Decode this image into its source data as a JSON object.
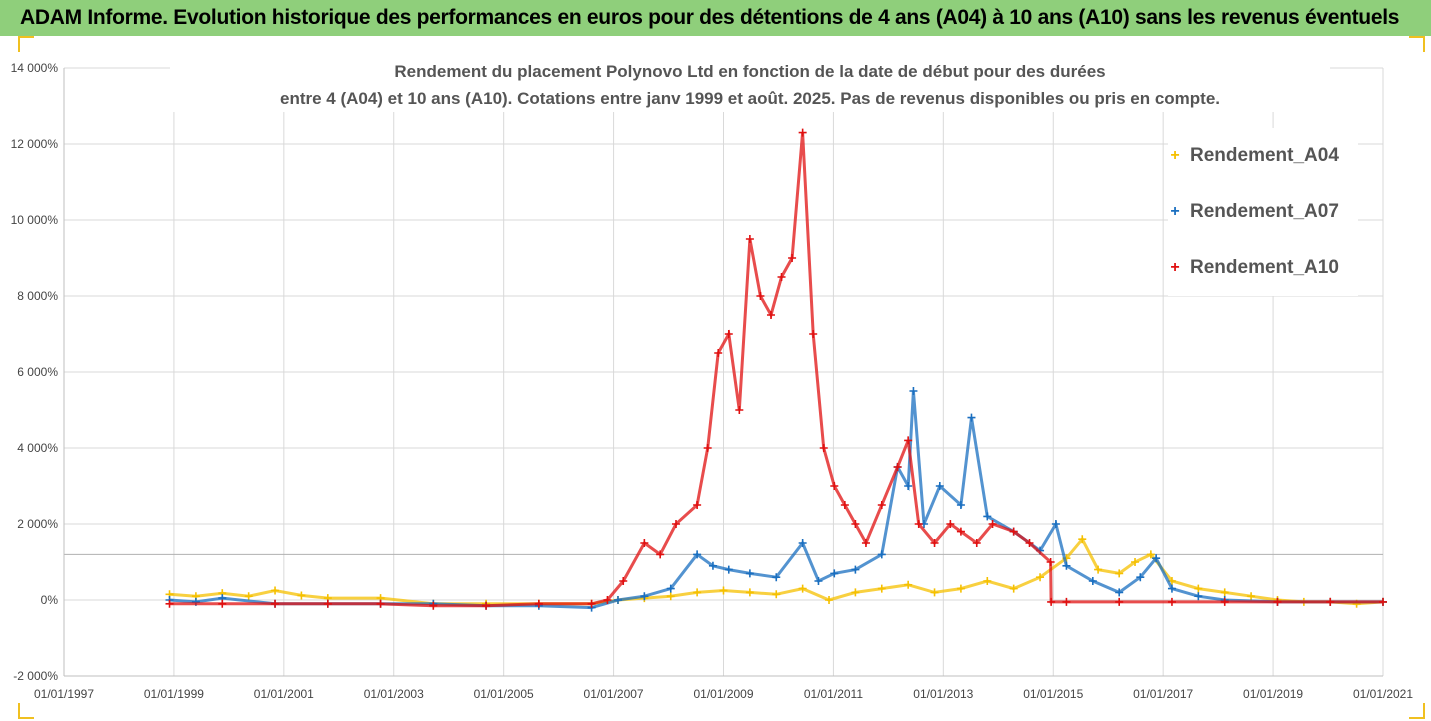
{
  "header": {
    "title": "ADAM Informe. Evolution historique des performances en euros pour des détentions de 4 ans (A04) à 10 ans (A10) sans les revenus éventuels"
  },
  "chart_data": {
    "type": "scatter",
    "title_line1": "Rendement du placement Polynovo Ltd en fonction de la date de début pour des durées",
    "title_line2": "entre 4 (A04) et 10 ans (A10). Cotations entre janv 1999 et août. 2025. Pas de revenus disponibles ou pris en compte.",
    "xlabel": "",
    "ylabel": "",
    "x_ticks": [
      "01/01/1997",
      "01/01/1999",
      "01/01/2001",
      "01/01/2003",
      "01/01/2005",
      "01/01/2007",
      "01/01/2009",
      "01/01/2011",
      "01/01/2013",
      "01/01/2015",
      "01/01/2017",
      "01/01/2019",
      "01/01/2021"
    ],
    "xlim": [
      1997.0,
      2022.0
    ],
    "y_ticks": [
      "-2 000%",
      "0%",
      "2 000%",
      "4 000%",
      "6 000%",
      "8 000%",
      "10 000%",
      "12 000%",
      "14 000%"
    ],
    "ylim": [
      -2000,
      14000
    ],
    "grid": true,
    "legend_position": "right",
    "reference_line_y": 1200,
    "marker": "+",
    "series": [
      {
        "name": "Rendement_A04",
        "color": "#f5c000",
        "x": [
          1999.0,
          1999.5,
          2000.0,
          2000.5,
          2001.0,
          2001.5,
          2002.0,
          2003.0,
          2004.0,
          2005.0,
          2006.0,
          2007.0,
          2007.5,
          2008.0,
          2008.5,
          2009.0,
          2009.5,
          2010.0,
          2010.5,
          2011.0,
          2011.5,
          2012.0,
          2012.5,
          2013.0,
          2013.5,
          2014.0,
          2014.5,
          2015.0,
          2015.5,
          2016.0,
          2016.3,
          2016.6,
          2017.0,
          2017.3,
          2017.6,
          2018.0,
          2018.5,
          2019.0,
          2019.5,
          2020.0,
          2020.5,
          2021.0,
          2021.5,
          2022.0
        ],
        "y": [
          150,
          100,
          180,
          100,
          250,
          120,
          50,
          50,
          -100,
          -100,
          -100,
          -100,
          0,
          50,
          100,
          200,
          250,
          200,
          150,
          300,
          0,
          200,
          300,
          400,
          200,
          300,
          500,
          300,
          600,
          1100,
          1600,
          800,
          700,
          1000,
          1200,
          500,
          300,
          200,
          100,
          0,
          -50,
          -50,
          -100,
          -50
        ]
      },
      {
        "name": "Rendement_A07",
        "color": "#1a6fc0",
        "x": [
          1999.0,
          1999.5,
          2000.0,
          2001.0,
          2002.0,
          2003.0,
          2004.0,
          2005.0,
          2006.0,
          2007.0,
          2007.5,
          2008.0,
          2008.5,
          2009.0,
          2009.3,
          2009.6,
          2010.0,
          2010.5,
          2011.0,
          2011.3,
          2011.6,
          2012.0,
          2012.5,
          2012.8,
          2013.0,
          2013.1,
          2013.3,
          2013.6,
          2014.0,
          2014.2,
          2014.5,
          2015.0,
          2015.5,
          2015.8,
          2016.0,
          2016.5,
          2017.0,
          2017.4,
          2017.7,
          2018.0,
          2018.5,
          2019.0,
          2020.0,
          2021.0,
          2022.0
        ],
        "y": [
          0,
          -50,
          50,
          -100,
          -100,
          -100,
          -100,
          -150,
          -150,
          -200,
          0,
          100,
          300,
          1200,
          900,
          800,
          700,
          600,
          1500,
          500,
          700,
          800,
          1200,
          3500,
          3000,
          5500,
          2000,
          3000,
          2500,
          4800,
          2200,
          1800,
          1300,
          2000,
          900,
          500,
          200,
          600,
          1100,
          300,
          100,
          0,
          -50,
          -50,
          -50
        ]
      },
      {
        "name": "Rendement_A10",
        "color": "#e01010",
        "x": [
          1999.0,
          2000.0,
          2001.0,
          2002.0,
          2003.0,
          2004.0,
          2005.0,
          2006.0,
          2007.0,
          2007.3,
          2007.6,
          2008.0,
          2008.3,
          2008.6,
          2009.0,
          2009.2,
          2009.4,
          2009.6,
          2009.8,
          2010.0,
          2010.2,
          2010.4,
          2010.6,
          2010.8,
          2011.0,
          2011.2,
          2011.4,
          2011.6,
          2011.8,
          2012.0,
          2012.2,
          2012.5,
          2012.8,
          2013.0,
          2013.2,
          2013.5,
          2013.8,
          2014.0,
          2014.3,
          2014.6,
          2015.0,
          2015.3,
          2015.7,
          2015.71,
          2016.0,
          2017.0,
          2018.0,
          2019.0,
          2020.0,
          2021.0,
          2022.0
        ],
        "y": [
          -100,
          -100,
          -100,
          -100,
          -100,
          -150,
          -150,
          -100,
          -100,
          0,
          500,
          1500,
          1200,
          2000,
          2500,
          4000,
          6500,
          7000,
          5000,
          9500,
          8000,
          7500,
          8500,
          9000,
          12300,
          7000,
          4000,
          3000,
          2500,
          2000,
          1500,
          2500,
          3500,
          4200,
          2000,
          1500,
          2000,
          1800,
          1500,
          2000,
          1800,
          1500,
          1000,
          -50,
          -50,
          -50,
          -50,
          -50,
          -50,
          -50,
          -50
        ]
      }
    ]
  }
}
